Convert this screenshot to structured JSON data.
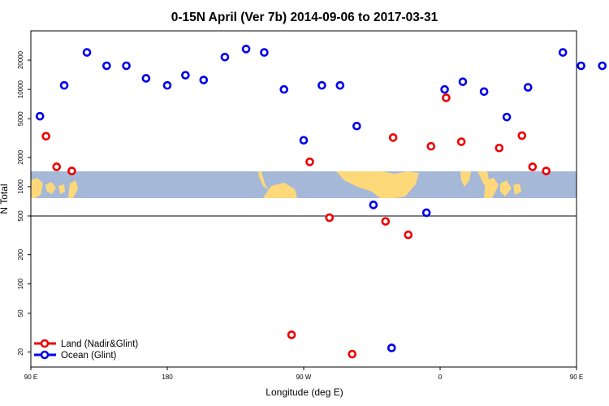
{
  "chart_data": {
    "type": "scatter",
    "title": "0-15N April (Ver 7b)   2014-09-06 to 2017-03-31",
    "xlabel": "Longitude (deg E)",
    "ylabel": "N Total",
    "y_scale": "log",
    "xlim": [
      90,
      450
    ],
    "ylim": [
      14,
      40000
    ],
    "x_ticks": [
      {
        "value": 90,
        "label": "90 E"
      },
      {
        "value": 180,
        "label": "180"
      },
      {
        "value": 270,
        "label": "90 W"
      },
      {
        "value": 360,
        "label": "0"
      },
      {
        "value": 450,
        "label": "90 E"
      },
      {
        "value": 540,
        "label": "180"
      }
    ],
    "y_ticks": [
      {
        "value": 20,
        "label": "20"
      },
      {
        "value": 50,
        "label": "50"
      },
      {
        "value": 100,
        "label": "100"
      },
      {
        "value": 200,
        "label": "200"
      },
      {
        "value": 500,
        "label": "500"
      },
      {
        "value": 1000,
        "label": "1000"
      },
      {
        "value": 2000,
        "label": "2000"
      },
      {
        "value": 5000,
        "label": "5000"
      },
      {
        "value": 10000,
        "label": "10000"
      },
      {
        "value": 20000,
        "label": "20000"
      }
    ],
    "reference_line_y": 500,
    "background_map": "world-map-strip",
    "legend_position": "bottom-left",
    "series": [
      {
        "name": "Land (Nadir&Glint)",
        "color": "#ee0000",
        "points": [
          [
            100,
            3300
          ],
          [
            107,
            1600
          ],
          [
            117,
            1450
          ],
          [
            262,
            30
          ],
          [
            274,
            1800
          ],
          [
            287,
            480
          ],
          [
            302,
            19
          ],
          [
            324,
            440
          ],
          [
            329,
            3200
          ],
          [
            339,
            320
          ],
          [
            354,
            2600
          ],
          [
            364,
            8200
          ],
          [
            374,
            2900
          ],
          [
            399,
            2500
          ],
          [
            414,
            3350
          ],
          [
            421,
            1600
          ],
          [
            430,
            1450
          ]
        ]
      },
      {
        "name": "Ocean (Glint)",
        "color": "#0000ee",
        "points": [
          [
            96,
            5300
          ],
          [
            112,
            11000
          ],
          [
            127,
            24000
          ],
          [
            140,
            17500
          ],
          [
            153,
            17500
          ],
          [
            166,
            13000
          ],
          [
            180,
            11000
          ],
          [
            192,
            14000
          ],
          [
            204,
            12500
          ],
          [
            218,
            21500
          ],
          [
            232,
            26000
          ],
          [
            244,
            24000
          ],
          [
            257,
            10000
          ],
          [
            270,
            3000
          ],
          [
            282,
            11000
          ],
          [
            294,
            11000
          ],
          [
            305,
            4200
          ],
          [
            316,
            650
          ],
          [
            328,
            22
          ],
          [
            351,
            540
          ],
          [
            363,
            10000
          ],
          [
            375,
            12000
          ],
          [
            389,
            9500
          ],
          [
            404,
            5200
          ],
          [
            418,
            10500
          ],
          [
            441,
            24000
          ],
          [
            453,
            17500
          ],
          [
            467,
            17500
          ],
          [
            480,
            13000
          ]
        ]
      }
    ]
  }
}
